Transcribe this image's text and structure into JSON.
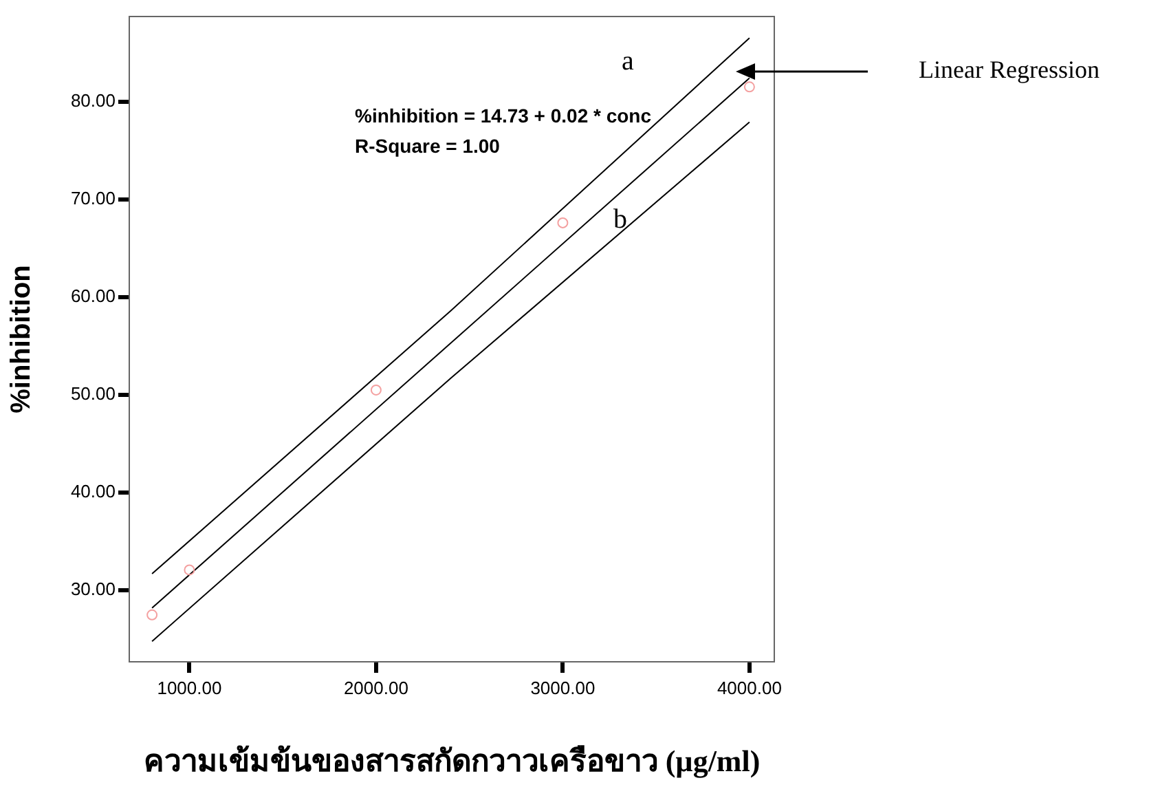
{
  "chart_data": {
    "type": "scatter",
    "xlabel": "ความเข้มข้นของสารสกัดกวาวเครือขาว (µg/ml)",
    "ylabel": "%inhibition",
    "xlim": [
      678,
      4133
    ],
    "ylim": [
      22.7,
      88.7
    ],
    "xticks": [
      {
        "value": 1000,
        "label": "1000.00"
      },
      {
        "value": 2000,
        "label": "2000.00"
      },
      {
        "value": 3000,
        "label": "3000.00"
      },
      {
        "value": 4000,
        "label": "4000.00"
      }
    ],
    "yticks": [
      {
        "value": 30,
        "label": "30.00"
      },
      {
        "value": 40,
        "label": "40.00"
      },
      {
        "value": 50,
        "label": "50.00"
      },
      {
        "value": 60,
        "label": "60.00"
      },
      {
        "value": 70,
        "label": "70.00"
      },
      {
        "value": 80,
        "label": "80.00"
      }
    ],
    "legend": false,
    "series": [
      {
        "marker": "circle",
        "color": "#f4a0a0",
        "x": [
          800,
          1000,
          2000,
          3000,
          4000
        ],
        "values": [
          27.5,
          32.1,
          50.5,
          67.6,
          81.5
        ]
      },
      {
        "type": "line",
        "color": "#000000",
        "x": [
          800,
          4000
        ],
        "values": [
          28.2,
          82.4
        ]
      },
      {
        "type": "line",
        "color": "#000000",
        "x": [
          800,
          2400,
          4000
        ],
        "values": [
          31.7,
          58.6,
          86.5
        ]
      },
      {
        "type": "line",
        "color": "#000000",
        "x": [
          800,
          2400,
          4000
        ],
        "values": [
          24.8,
          51.7,
          77.9
        ]
      }
    ],
    "annotations": [
      "%inhibition = 14.73 + 0.02 * conc",
      "R-Square = 1.00",
      "Linear Regression",
      "a",
      "b"
    ]
  }
}
